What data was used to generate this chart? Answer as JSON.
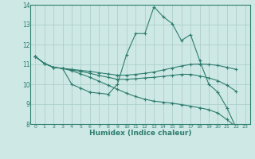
{
  "xlabel": "Humidex (Indice chaleur)",
  "ylabel": "",
  "bg_color": "#cde8e5",
  "line_color": "#2e7d6e",
  "grid_color": "#aecfcc",
  "xlim": [
    -0.5,
    23.5
  ],
  "ylim": [
    8,
    14
  ],
  "xticks": [
    0,
    1,
    2,
    3,
    4,
    5,
    6,
    7,
    8,
    9,
    10,
    11,
    12,
    13,
    14,
    15,
    16,
    17,
    18,
    19,
    20,
    21,
    22,
    23
  ],
  "yticks": [
    8,
    9,
    10,
    11,
    12,
    13,
    14
  ],
  "series": [
    {
      "x": [
        0,
        1,
        2,
        3,
        4,
        5,
        6,
        7,
        8,
        9,
        10,
        11,
        12,
        13,
        14,
        15,
        16,
        17,
        18,
        19,
        20,
        21,
        22
      ],
      "y": [
        11.4,
        11.05,
        10.85,
        10.8,
        10.0,
        9.8,
        9.6,
        9.55,
        9.5,
        10.0,
        11.5,
        12.55,
        12.55,
        13.9,
        13.4,
        13.05,
        12.2,
        12.5,
        11.2,
        10.0,
        9.6,
        8.8,
        7.8
      ]
    },
    {
      "x": [
        0,
        1,
        2,
        3,
        4,
        5,
        6,
        7,
        8,
        9,
        10,
        11,
        12,
        13,
        14,
        15,
        16,
        17,
        18,
        19,
        20,
        21,
        22
      ],
      "y": [
        11.4,
        11.05,
        10.85,
        10.8,
        10.75,
        10.7,
        10.65,
        10.58,
        10.52,
        10.46,
        10.46,
        10.5,
        10.55,
        10.62,
        10.72,
        10.82,
        10.92,
        11.0,
        11.02,
        11.0,
        10.95,
        10.85,
        10.75
      ]
    },
    {
      "x": [
        0,
        1,
        2,
        3,
        4,
        5,
        6,
        7,
        8,
        9,
        10,
        11,
        12,
        13,
        14,
        15,
        16,
        17,
        18,
        19,
        20,
        21,
        22
      ],
      "y": [
        11.4,
        11.05,
        10.85,
        10.8,
        10.72,
        10.65,
        10.55,
        10.44,
        10.35,
        10.25,
        10.25,
        10.28,
        10.32,
        10.35,
        10.4,
        10.45,
        10.5,
        10.5,
        10.42,
        10.32,
        10.18,
        9.95,
        9.65
      ]
    },
    {
      "x": [
        0,
        1,
        2,
        3,
        4,
        5,
        6,
        7,
        8,
        9,
        10,
        11,
        12,
        13,
        14,
        15,
        16,
        17,
        18,
        19,
        20,
        21,
        22
      ],
      "y": [
        11.4,
        11.05,
        10.85,
        10.8,
        10.68,
        10.52,
        10.35,
        10.15,
        9.95,
        9.75,
        9.55,
        9.38,
        9.25,
        9.15,
        9.1,
        9.05,
        8.98,
        8.9,
        8.82,
        8.72,
        8.55,
        8.22,
        7.85
      ]
    }
  ]
}
